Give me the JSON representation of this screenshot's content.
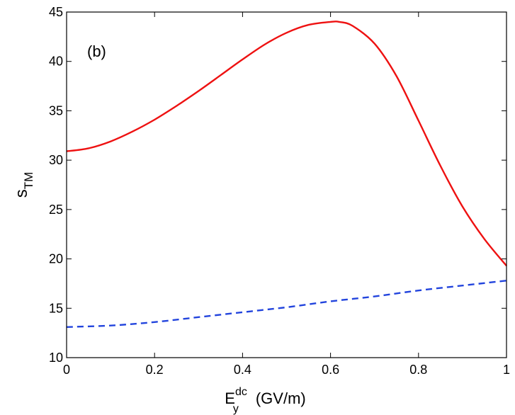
{
  "chart_data": {
    "type": "line",
    "title": "",
    "annotation": "(b)",
    "xlabel": {
      "main": "E",
      "sub": "y",
      "sup": "dc",
      "units": "(GV/m)"
    },
    "ylabel": {
      "main": "s",
      "sub": "TM"
    },
    "xlim": [
      0,
      1
    ],
    "ylim": [
      10,
      45
    ],
    "xticks": [
      0,
      0.2,
      0.4,
      0.6,
      0.8,
      1
    ],
    "xtick_labels": [
      "0",
      "0.2",
      "0.4",
      "0.6",
      "0.8",
      "1"
    ],
    "yticks": [
      10,
      15,
      20,
      25,
      30,
      35,
      40,
      45
    ],
    "ytick_labels": [
      "10",
      "15",
      "20",
      "25",
      "30",
      "35",
      "40",
      "45"
    ],
    "grid": false,
    "series": [
      {
        "name": "solid-red",
        "color": "#ee1111",
        "style": "solid",
        "x": [
          0,
          0.05,
          0.1,
          0.15,
          0.2,
          0.25,
          0.3,
          0.35,
          0.4,
          0.45,
          0.5,
          0.55,
          0.6,
          0.62,
          0.65,
          0.7,
          0.75,
          0.8,
          0.85,
          0.9,
          0.95,
          1.0
        ],
        "y": [
          30.9,
          31.2,
          31.9,
          32.9,
          34.1,
          35.5,
          37.0,
          38.6,
          40.2,
          41.7,
          42.9,
          43.7,
          44.0,
          44.0,
          43.6,
          41.8,
          38.5,
          34.0,
          29.4,
          25.3,
          22.0,
          19.3
        ]
      },
      {
        "name": "dashed-blue",
        "color": "#2244dd",
        "style": "dashed",
        "x": [
          0,
          0.1,
          0.2,
          0.3,
          0.4,
          0.5,
          0.6,
          0.7,
          0.8,
          0.9,
          1.0
        ],
        "y": [
          13.1,
          13.25,
          13.6,
          14.1,
          14.6,
          15.1,
          15.7,
          16.2,
          16.8,
          17.3,
          17.8
        ]
      }
    ]
  }
}
